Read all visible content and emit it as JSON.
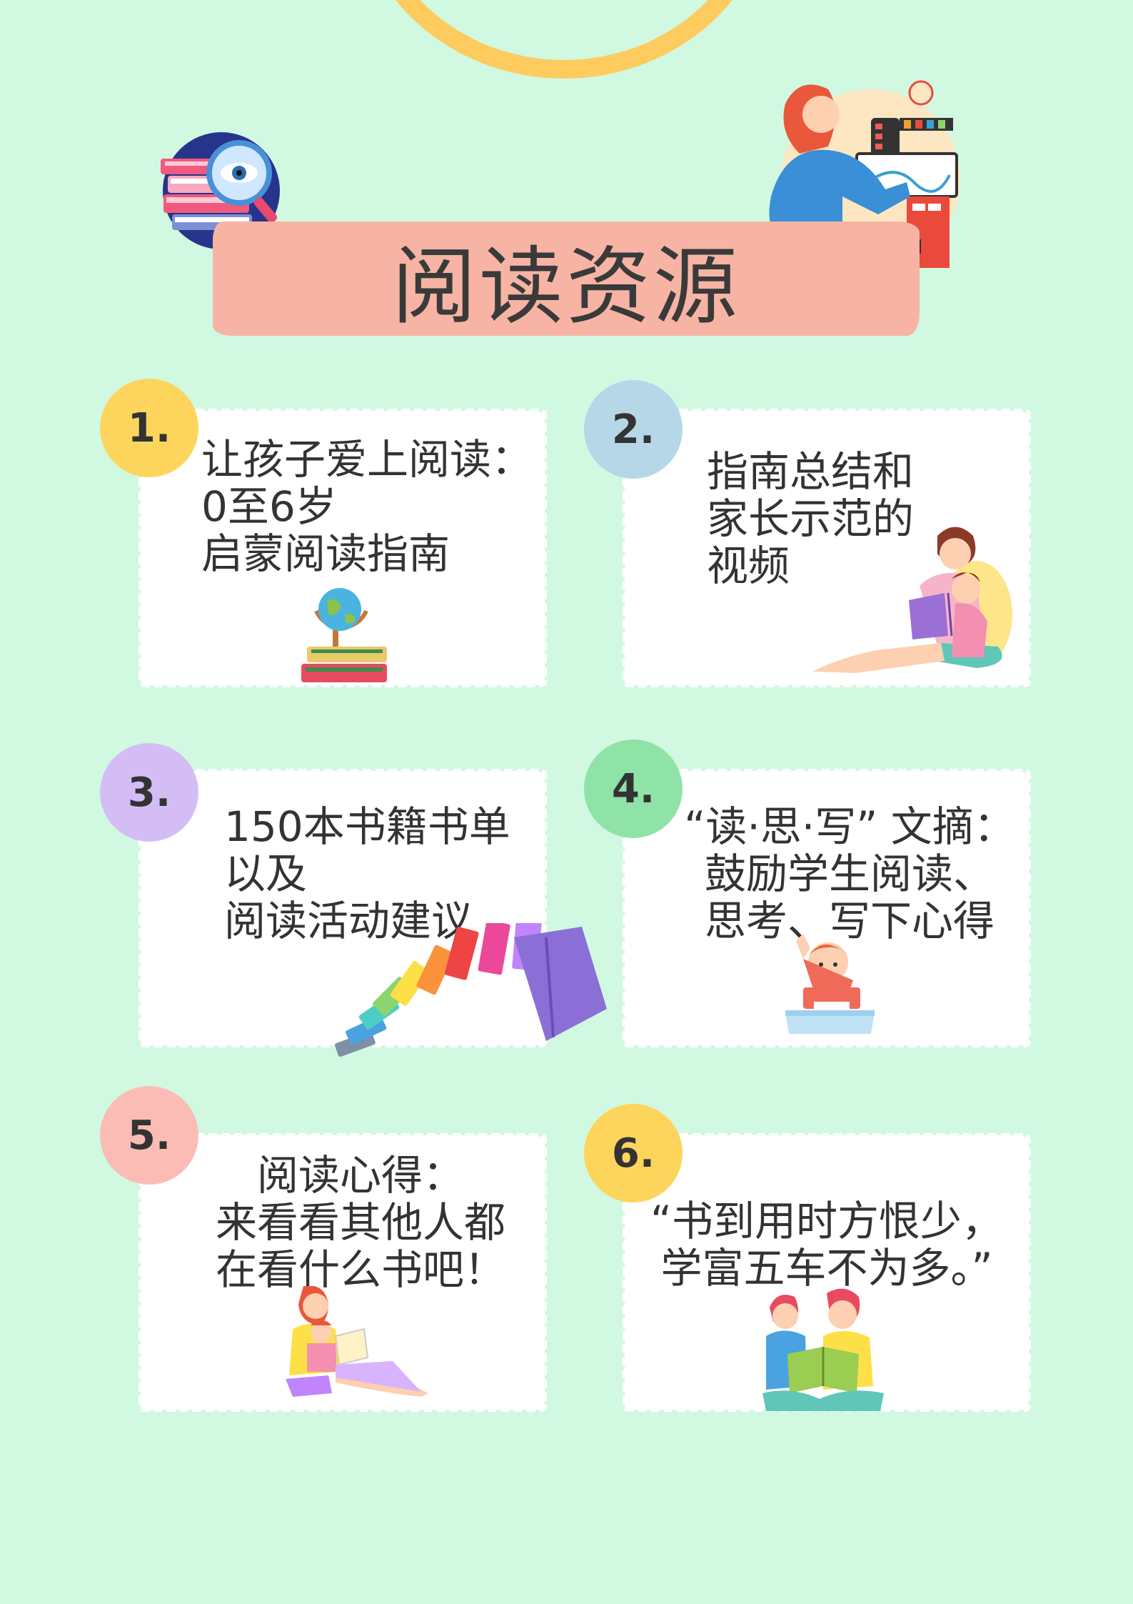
{
  "title": "阅读资源",
  "colors": {
    "background": "#d1f9e2",
    "title_band": "#f7b4a4",
    "arc": "#fecb5f",
    "card": "#ffffff"
  },
  "cards": [
    {
      "number": "1.",
      "badge_color": "#fdd55c",
      "text": "让孩子爱上阅读：\n0至6岁\n启蒙阅读指南",
      "icon": "globe-on-books-icon"
    },
    {
      "number": "2.",
      "badge_color": "#b6d7e8",
      "text": "指南总结和\n家长示范的\n视频",
      "icon": "mother-reading-to-child-icon"
    },
    {
      "number": "3.",
      "badge_color": "#d4bdf5",
      "text": "150本书籍书单\n以及\n阅读活动建议",
      "icon": "rainbow-books-icon"
    },
    {
      "number": "4.",
      "badge_color": "#8fe3a6",
      "text": "“读·思·写” 文摘：\n鼓励学生阅读、\n思考、写下心得",
      "icon": "child-at-desk-icon"
    },
    {
      "number": "5.",
      "badge_color": "#fbbcb5",
      "text": "阅读心得：\n来看看其他人都\n在看什么书吧！",
      "icon": "mother-child-reading-icon"
    },
    {
      "number": "6.",
      "badge_color": "#fdd55c",
      "text": "“书到用时方恨少，\n学富五车不为多。”",
      "icon": "two-girls-reading-icon"
    }
  ],
  "header_icons": [
    "books-magnifier-icon",
    "woman-at-drawing-desk-icon"
  ]
}
